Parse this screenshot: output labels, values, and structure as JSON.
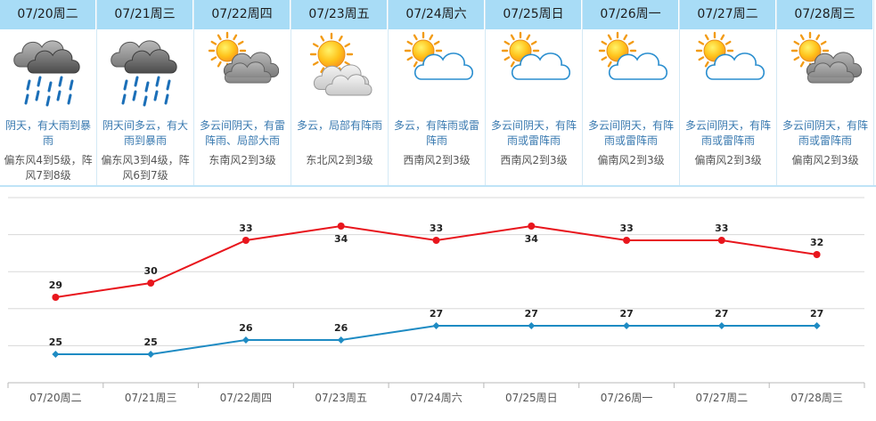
{
  "days": [
    {
      "date": "07/20周二",
      "icon": "heavy-rain-icon",
      "desc": "阴天，有大雨到暴雨",
      "wind": "偏东风4到5级，阵风7到8级"
    },
    {
      "date": "07/21周三",
      "icon": "heavy-rain-icon",
      "desc": "阴天间多云，有大雨到暴雨",
      "wind": "偏东风3到4级，阵风6到7级"
    },
    {
      "date": "07/22周四",
      "icon": "sun-dark-cloud-icon",
      "desc": "多云间阴天，有雷阵雨、局部大雨",
      "wind": "东南风2到3级"
    },
    {
      "date": "07/23周五",
      "icon": "sun-light-cloud-icon",
      "desc": "多云，局部有阵雨",
      "wind": "东北风2到3级"
    },
    {
      "date": "07/24周六",
      "icon": "partly-cloudy-icon",
      "desc": "多云，有阵雨或雷阵雨",
      "wind": "西南风2到3级"
    },
    {
      "date": "07/25周日",
      "icon": "partly-cloudy-icon",
      "desc": "多云间阴天，有阵雨或雷阵雨",
      "wind": "西南风2到3级"
    },
    {
      "date": "07/26周一",
      "icon": "partly-cloudy-icon",
      "desc": "多云间阴天，有阵雨或雷阵雨",
      "wind": "偏南风2到3级"
    },
    {
      "date": "07/27周二",
      "icon": "partly-cloudy-icon",
      "desc": "多云间阴天，有阵雨或雷阵雨",
      "wind": "偏南风2到3级"
    },
    {
      "date": "07/28周三",
      "icon": "sun-dark-cloud-icon",
      "desc": "多云间阴天，有阵雨或雷阵雨",
      "wind": "偏南风2到3级"
    }
  ],
  "chart_data": {
    "type": "line",
    "categories": [
      "07/20周二",
      "07/21周三",
      "07/22周四",
      "07/23周五",
      "07/24周六",
      "07/25周日",
      "07/26周一",
      "07/27周二",
      "07/28周三"
    ],
    "series": [
      {
        "values": [
          29,
          30,
          33,
          34,
          33,
          34,
          33,
          33,
          32
        ],
        "color": "#e8161d"
      },
      {
        "values": [
          25,
          25,
          26,
          26,
          27,
          27,
          27,
          27,
          27
        ],
        "color": "#1e8bc3"
      }
    ],
    "ylim": [
      23,
      36
    ],
    "grid": true
  }
}
